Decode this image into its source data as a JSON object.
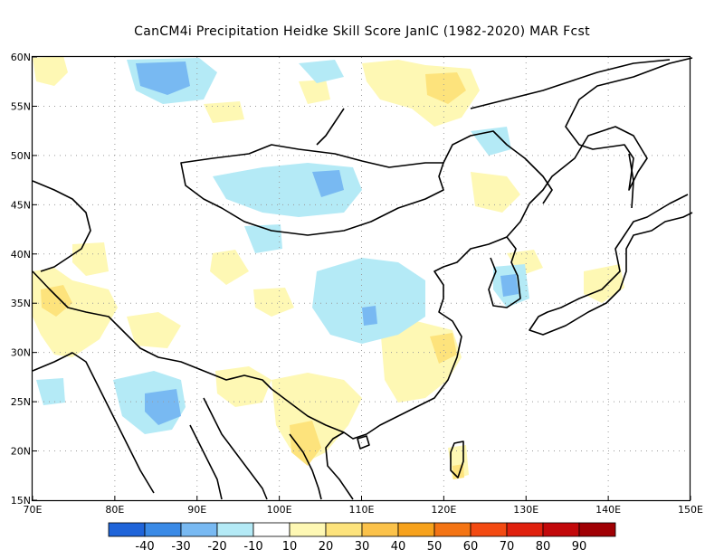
{
  "title": "CanCM4i  Precipitation Heidke Skill Score JanIC (1982-2020) MAR Fcst",
  "lon_labels": [
    "70E",
    "80E",
    "90E",
    "100E",
    "110E",
    "120E",
    "130E",
    "140E",
    "150E"
  ],
  "lat_labels": [
    "15N",
    "20N",
    "25N",
    "30N",
    "35N",
    "40N",
    "45N",
    "50N",
    "55N",
    "60N"
  ],
  "colorbar": {
    "colors": [
      "#1f64d9",
      "#3a8ae6",
      "#78b9f2",
      "#b4eaf6",
      "#ffffff",
      "#fef8b4",
      "#fde37c",
      "#fbc24a",
      "#f7a21c",
      "#f47414",
      "#f34a12",
      "#e0200d",
      "#c2080a",
      "#a00004"
    ],
    "labels": [
      "-40",
      "-30",
      "-20",
      "-10",
      "10",
      "20",
      "30",
      "40",
      "50",
      "60",
      "70",
      "80",
      "90"
    ]
  },
  "colors": {
    "coast": "#000000",
    "grid": "#9a9a9a"
  }
}
